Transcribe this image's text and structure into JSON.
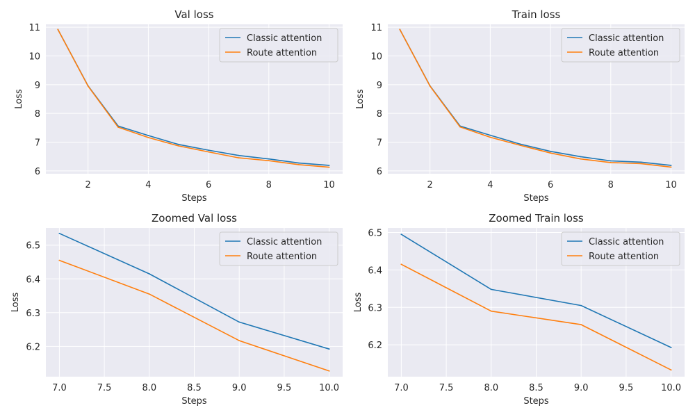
{
  "chart_data": [
    {
      "type": "line",
      "title": "Val loss",
      "xlabel": "Steps",
      "ylabel": "Loss",
      "xlim": [
        0.6,
        10.45
      ],
      "ylim": [
        5.9,
        11.1
      ],
      "xticks": [
        2,
        4,
        6,
        8,
        10
      ],
      "xtick_labels": [
        "2",
        "4",
        "6",
        "8",
        "10"
      ],
      "yticks": [
        6,
        7,
        8,
        9,
        10,
        11
      ],
      "ytick_labels": [
        "6",
        "7",
        "8",
        "9",
        "10",
        "11"
      ],
      "grid": true,
      "legend": "top-right",
      "x": [
        1,
        2,
        3,
        4,
        5,
        6,
        7,
        8,
        9,
        10
      ],
      "series": [
        {
          "name": "Classic attention",
          "color": "#1f77b4",
          "values": [
            10.92,
            8.96,
            7.56,
            7.23,
            6.92,
            6.72,
            6.535,
            6.415,
            6.272,
            6.192
          ]
        },
        {
          "name": "Route attention",
          "color": "#ff7f0e",
          "values": [
            10.92,
            8.95,
            7.52,
            7.16,
            6.87,
            6.66,
            6.455,
            6.355,
            6.217,
            6.127
          ]
        }
      ]
    },
    {
      "type": "line",
      "title": "Train loss",
      "xlabel": "Steps",
      "ylabel": "Loss",
      "xlim": [
        0.6,
        10.45
      ],
      "ylim": [
        5.9,
        11.1
      ],
      "xticks": [
        2,
        4,
        6,
        8,
        10
      ],
      "xtick_labels": [
        "2",
        "4",
        "6",
        "8",
        "10"
      ],
      "yticks": [
        6,
        7,
        8,
        9,
        10,
        11
      ],
      "ytick_labels": [
        "6",
        "7",
        "8",
        "9",
        "10",
        "11"
      ],
      "grid": true,
      "legend": "top-right",
      "x": [
        1,
        2,
        3,
        4,
        5,
        6,
        7,
        8,
        9,
        10
      ],
      "series": [
        {
          "name": "Classic attention",
          "color": "#1f77b4",
          "values": [
            10.92,
            8.96,
            7.56,
            7.24,
            6.93,
            6.68,
            6.495,
            6.348,
            6.305,
            6.193
          ]
        },
        {
          "name": "Route attention",
          "color": "#ff7f0e",
          "values": [
            10.92,
            8.95,
            7.53,
            7.17,
            6.89,
            6.62,
            6.415,
            6.29,
            6.254,
            6.133
          ]
        }
      ]
    },
    {
      "type": "line",
      "title": "Zoomed Val loss",
      "xlabel": "Steps",
      "ylabel": "Loss",
      "xlim": [
        6.85,
        10.15
      ],
      "ylim": [
        6.11,
        6.551
      ],
      "xticks": [
        7.0,
        7.5,
        8.0,
        8.5,
        9.0,
        9.5,
        10.0
      ],
      "xtick_labels": [
        "7.0",
        "7.5",
        "8.0",
        "8.5",
        "9.0",
        "9.5",
        "10.0"
      ],
      "yticks": [
        6.2,
        6.3,
        6.4,
        6.5
      ],
      "ytick_labels": [
        "6.2",
        "6.3",
        "6.4",
        "6.5"
      ],
      "grid": true,
      "legend": "top-right",
      "x": [
        7,
        8,
        9,
        10
      ],
      "series": [
        {
          "name": "Classic attention",
          "color": "#1f77b4",
          "values": [
            6.535,
            6.415,
            6.272,
            6.192
          ]
        },
        {
          "name": "Route attention",
          "color": "#ff7f0e",
          "values": [
            6.455,
            6.355,
            6.217,
            6.127
          ]
        }
      ]
    },
    {
      "type": "line",
      "title": "Zoomed Train loss",
      "xlabel": "Steps",
      "ylabel": "Loss",
      "xlim": [
        6.85,
        10.15
      ],
      "ylim": [
        6.115,
        6.512
      ],
      "xticks": [
        7.0,
        7.5,
        8.0,
        8.5,
        9.0,
        9.5,
        10.0
      ],
      "xtick_labels": [
        "7.0",
        "7.5",
        "8.0",
        "8.5",
        "9.0",
        "9.5",
        "10.0"
      ],
      "yticks": [
        6.2,
        6.3,
        6.4,
        6.5
      ],
      "ytick_labels": [
        "6.2",
        "6.3",
        "6.4",
        "6.5"
      ],
      "grid": true,
      "legend": "top-right",
      "x": [
        7,
        8,
        9,
        10
      ],
      "series": [
        {
          "name": "Classic attention",
          "color": "#1f77b4",
          "values": [
            6.495,
            6.348,
            6.305,
            6.193
          ]
        },
        {
          "name": "Route attention",
          "color": "#ff7f0e",
          "values": [
            6.415,
            6.29,
            6.254,
            6.133
          ]
        }
      ]
    }
  ]
}
